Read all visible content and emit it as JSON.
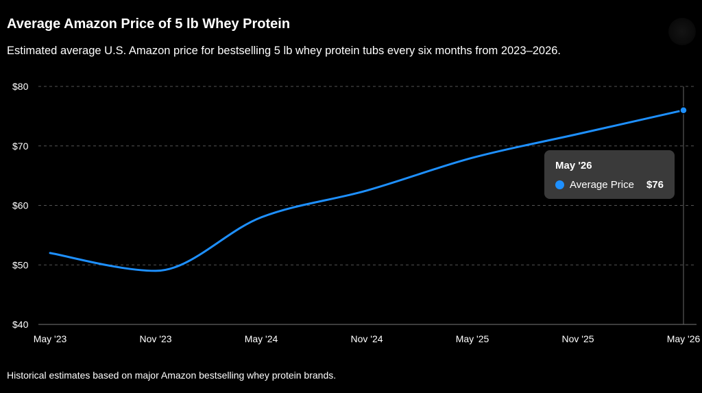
{
  "title": "Average Amazon Price of 5 lb Whey Protein",
  "subtitle": "Estimated average U.S. Amazon price for bestselling 5 lb whey protein tubs every six months from 2023–2026.",
  "footnote": "Historical estimates based on major Amazon bestselling whey protein brands.",
  "colors": {
    "background": "#000000",
    "line": "#1e90ff",
    "grid": "#555555",
    "tooltip_bg": "#3a3a3a"
  },
  "tooltip": {
    "date": "May '26",
    "series": "Average Price",
    "value": "$76"
  },
  "chart_data": {
    "type": "line",
    "x": [
      "May '23",
      "Nov '23",
      "May '24",
      "Nov '24",
      "May '25",
      "Nov '25",
      "May '26"
    ],
    "series": [
      {
        "name": "Average Price",
        "values": [
          52,
          49,
          58,
          62.5,
          68,
          72,
          76
        ]
      }
    ],
    "ylim": [
      40,
      80
    ],
    "yticks": [
      {
        "value": 40,
        "label": "$40"
      },
      {
        "value": 50,
        "label": "$50"
      },
      {
        "value": 60,
        "label": "$60"
      },
      {
        "value": 70,
        "label": "$70"
      },
      {
        "value": 80,
        "label": "$80"
      }
    ],
    "grid": true,
    "highlighted_point": "May '26",
    "xlabel": "",
    "ylabel": ""
  }
}
